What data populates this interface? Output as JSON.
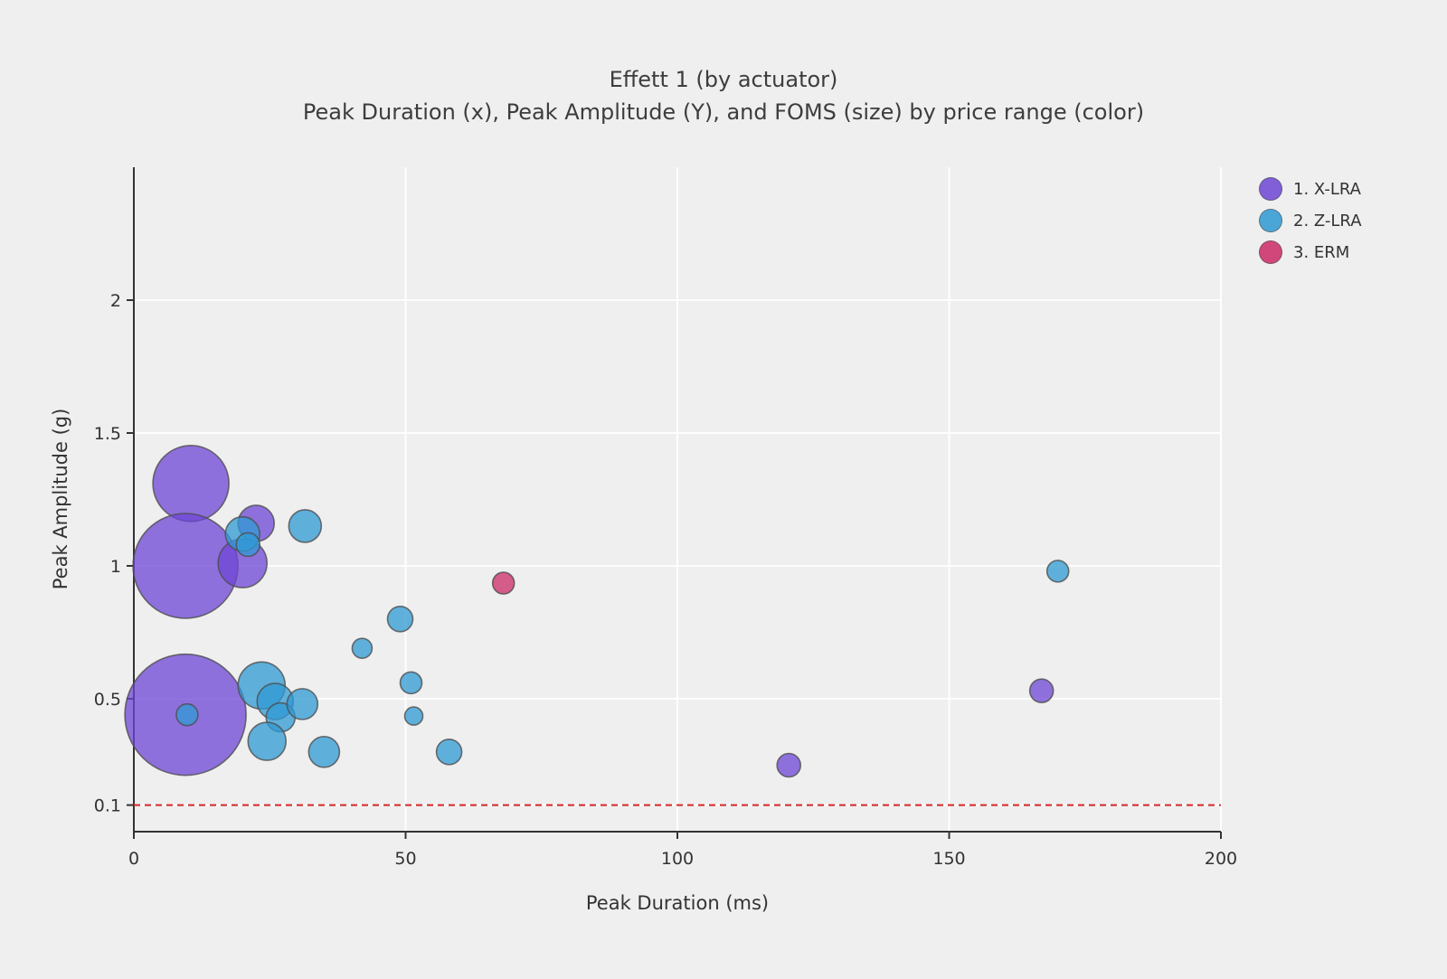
{
  "page": {
    "background": "#efefef"
  },
  "header": {
    "title": "Effett 1 (by actuator)",
    "subtitle": "Peak Duration (x), Peak Amplitude (Y), and FOMS (size) by price range (color)"
  },
  "chart_data": {
    "type": "bubble",
    "title": "Effett 1 (by actuator)",
    "subtitle": "Peak Duration (x), Peak Amplitude (Y), and FOMS (size) by price range (color)",
    "xlabel": "Peak Duration (ms)",
    "ylabel": "Peak Amplitude (g)",
    "xlim": [
      0,
      200
    ],
    "ylim": [
      0,
      2.5
    ],
    "x_ticks": [
      0,
      50,
      100,
      150,
      200
    ],
    "y_ticks": [
      0.1,
      0.5,
      1,
      1.5,
      2
    ],
    "grid": true,
    "grid_color": "#ffffff",
    "axis_color": "#333333",
    "threshold_line": {
      "y": 0.1,
      "color": "#d62728",
      "style": "dashed"
    },
    "legend": {
      "position": "top-right",
      "items": [
        {
          "label": "1. X-LRA",
          "color": "#6d46d6"
        },
        {
          "label": "2. Z-LRA",
          "color": "#2f9ad4"
        },
        {
          "label": "3. ERM",
          "color": "#cc2a66"
        }
      ]
    },
    "series": [
      {
        "name": "1. X-LRA",
        "color": "#6d46d6",
        "points": [
          {
            "x": 10.5,
            "y": 1.31,
            "r": 42
          },
          {
            "x": 9.5,
            "y": 1.0,
            "r": 58
          },
          {
            "x": 22.5,
            "y": 1.16,
            "r": 20
          },
          {
            "x": 20,
            "y": 1.01,
            "r": 27
          },
          {
            "x": 9.5,
            "y": 0.44,
            "r": 67
          },
          {
            "x": 120.5,
            "y": 0.25,
            "r": 13
          },
          {
            "x": 167,
            "y": 0.53,
            "r": 13
          }
        ]
      },
      {
        "name": "2. Z-LRA",
        "color": "#2f9ad4",
        "points": [
          {
            "x": 20,
            "y": 1.12,
            "r": 19
          },
          {
            "x": 21,
            "y": 1.08,
            "r": 13
          },
          {
            "x": 31.5,
            "y": 1.15,
            "r": 18
          },
          {
            "x": 23.5,
            "y": 0.55,
            "r": 26
          },
          {
            "x": 26,
            "y": 0.49,
            "r": 20
          },
          {
            "x": 27,
            "y": 0.43,
            "r": 16
          },
          {
            "x": 31,
            "y": 0.48,
            "r": 17
          },
          {
            "x": 24.5,
            "y": 0.34,
            "r": 21
          },
          {
            "x": 35,
            "y": 0.3,
            "r": 17
          },
          {
            "x": 42,
            "y": 0.69,
            "r": 11
          },
          {
            "x": 49,
            "y": 0.8,
            "r": 14
          },
          {
            "x": 51,
            "y": 0.56,
            "r": 12
          },
          {
            "x": 51.5,
            "y": 0.435,
            "r": 10
          },
          {
            "x": 58,
            "y": 0.3,
            "r": 14
          },
          {
            "x": 9.8,
            "y": 0.44,
            "r": 12
          },
          {
            "x": 170,
            "y": 0.98,
            "r": 12
          }
        ]
      },
      {
        "name": "3. ERM",
        "color": "#cc2a66",
        "points": [
          {
            "x": 68,
            "y": 0.935,
            "r": 12
          }
        ]
      }
    ]
  }
}
